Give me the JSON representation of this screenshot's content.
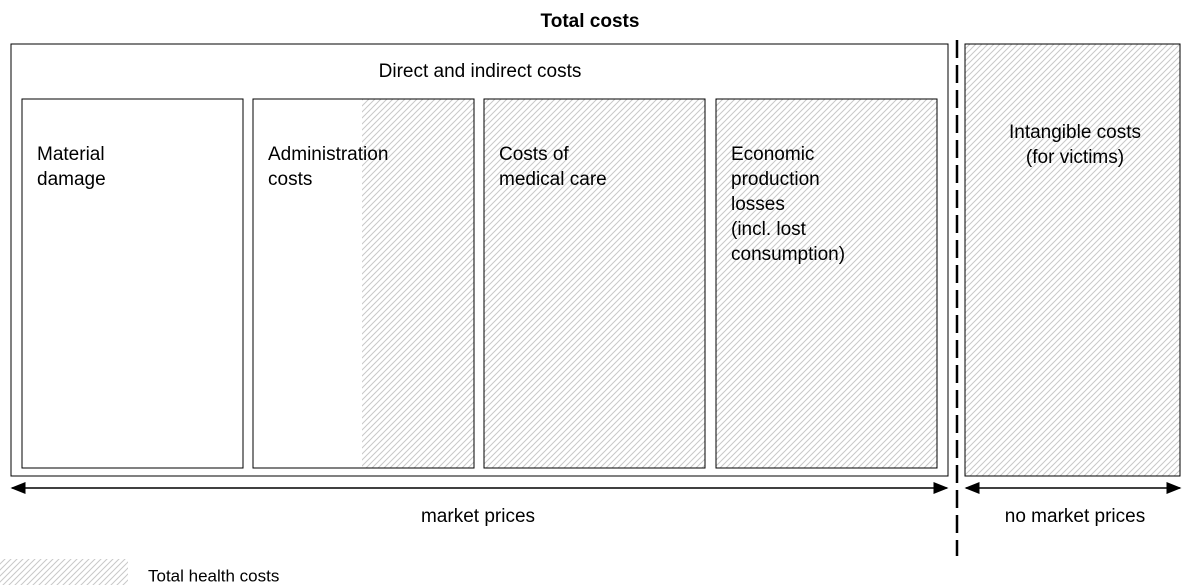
{
  "title": "Total costs",
  "outer_label": "Direct and indirect costs",
  "boxes": [
    {
      "lines": [
        "Material",
        "damage"
      ]
    },
    {
      "lines": [
        "Administration",
        "costs"
      ]
    },
    {
      "lines": [
        "Costs of",
        "medical care"
      ]
    },
    {
      "lines": [
        "Economic",
        "production",
        "losses",
        "(incl. lost",
        "consumption)"
      ]
    }
  ],
  "intangible": {
    "lines": [
      "Intangible costs",
      "(for victims)"
    ]
  },
  "market_label": "market prices",
  "no_market_label": "no market prices",
  "legend": "Total health costs"
}
